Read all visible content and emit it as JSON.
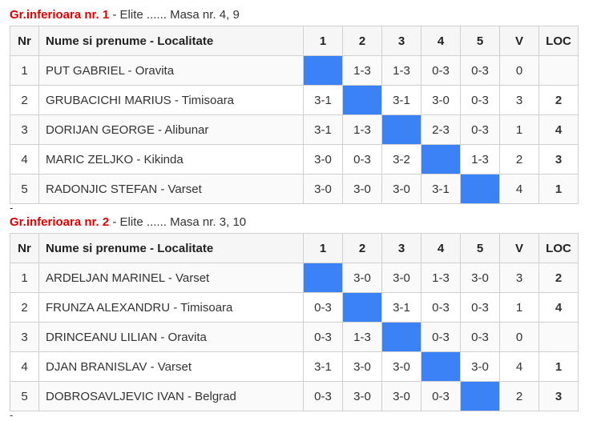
{
  "headers": {
    "nr": "Nr",
    "name": "Nume si prenume - Localitate",
    "c1": "1",
    "c2": "2",
    "c3": "3",
    "c4": "4",
    "c5": "5",
    "v": "V",
    "loc": "LOC"
  },
  "separator": "-",
  "groups": [
    {
      "title": "Gr.inferioara nr. 1",
      "info": " - Elite ...... Masa nr. 4, 9",
      "rows": [
        {
          "nr": "1",
          "name": "PUT GABRIEL - Oravita",
          "scores": [
            "",
            "1-3",
            "1-3",
            "0-3",
            "0-3"
          ],
          "self": 0,
          "v": "0",
          "loc": ""
        },
        {
          "nr": "2",
          "name": "GRUBACICHI MARIUS - Timisoara",
          "scores": [
            "3-1",
            "",
            "3-1",
            "3-0",
            "0-3"
          ],
          "self": 1,
          "v": "3",
          "loc": "2"
        },
        {
          "nr": "3",
          "name": "DORIJAN GEORGE - Alibunar",
          "scores": [
            "3-1",
            "1-3",
            "",
            "2-3",
            "0-3"
          ],
          "self": 2,
          "v": "1",
          "loc": "4"
        },
        {
          "nr": "4",
          "name": "MARIC ZELJKO - Kikinda",
          "scores": [
            "3-0",
            "0-3",
            "3-2",
            "",
            "1-3"
          ],
          "self": 3,
          "v": "2",
          "loc": "3"
        },
        {
          "nr": "5",
          "name": "RADONJIC STEFAN - Varset",
          "scores": [
            "3-0",
            "3-0",
            "3-0",
            "3-1",
            ""
          ],
          "self": 4,
          "v": "4",
          "loc": "1"
        }
      ]
    },
    {
      "title": "Gr.inferioara nr. 2",
      "info": " - Elite ...... Masa nr. 3, 10",
      "rows": [
        {
          "nr": "1",
          "name": "ARDELJAN MARINEL - Varset",
          "scores": [
            "",
            "3-0",
            "3-0",
            "1-3",
            "3-0"
          ],
          "self": 0,
          "v": "3",
          "loc": "2"
        },
        {
          "nr": "2",
          "name": "FRUNZA ALEXANDRU - Timisoara",
          "scores": [
            "0-3",
            "",
            "3-1",
            "0-3",
            "0-3"
          ],
          "self": 1,
          "v": "1",
          "loc": "4"
        },
        {
          "nr": "3",
          "name": "DRINCEANU LILIAN - Oravita",
          "scores": [
            "0-3",
            "1-3",
            "",
            "0-3",
            "0-3"
          ],
          "self": 2,
          "v": "0",
          "loc": ""
        },
        {
          "nr": "4",
          "name": "DJAN BRANISLAV - Varset",
          "scores": [
            "3-1",
            "3-0",
            "3-0",
            "",
            "3-0"
          ],
          "self": 3,
          "v": "4",
          "loc": "1"
        },
        {
          "nr": "5",
          "name": "DOBROSAVLJEVIC IVAN - Belgrad",
          "scores": [
            "0-3",
            "3-0",
            "3-0",
            "0-3",
            ""
          ],
          "self": 4,
          "v": "2",
          "loc": "3"
        }
      ]
    }
  ],
  "colors": {
    "title": "#e00000",
    "self_cell": "#3b82f6"
  }
}
